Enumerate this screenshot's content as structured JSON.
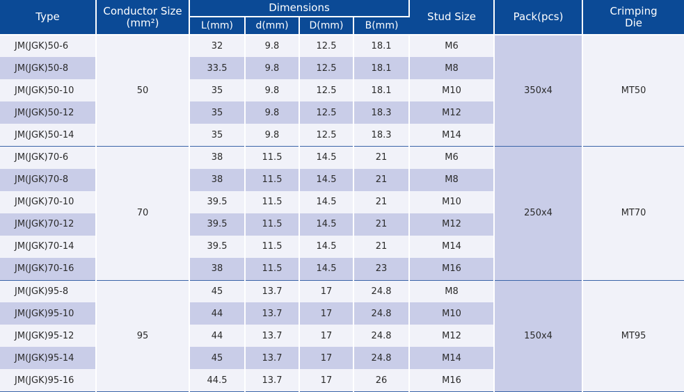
{
  "header": {
    "type": "Type",
    "conductor_size": "Conductor Size\n(mm²)",
    "dimensions": "Dimensions",
    "L": "L(mm)",
    "d": "d(mm)",
    "D": "D(mm)",
    "B": "B(mm)",
    "stud_size": "Stud Size",
    "pack": "Pack(pcs)",
    "crimping_die": "Crimping\nDie"
  },
  "groups": [
    {
      "conductor_size": "50",
      "pack": "350x4",
      "die": "MT50",
      "rows": [
        {
          "type": "JM(JGK)50-6",
          "L": "32",
          "d": "9.8",
          "D": "12.5",
          "B": "18.1",
          "stud": "M6"
        },
        {
          "type": "JM(JGK)50-8",
          "L": "33.5",
          "d": "9.8",
          "D": "12.5",
          "B": "18.1",
          "stud": "M8"
        },
        {
          "type": "JM(JGK)50-10",
          "L": "35",
          "d": "9.8",
          "D": "12.5",
          "B": "18.1",
          "stud": "M10"
        },
        {
          "type": "JM(JGK)50-12",
          "L": "35",
          "d": "9.8",
          "D": "12.5",
          "B": "18.3",
          "stud": "M12"
        },
        {
          "type": "JM(JGK)50-14",
          "L": "35",
          "d": "9.8",
          "D": "12.5",
          "B": "18.3",
          "stud": "M14"
        }
      ]
    },
    {
      "conductor_size": "70",
      "pack": "250x4",
      "die": "MT70",
      "rows": [
        {
          "type": "JM(JGK)70-6",
          "L": "38",
          "d": "11.5",
          "D": "14.5",
          "B": "21",
          "stud": "M6"
        },
        {
          "type": "JM(JGK)70-8",
          "L": "38",
          "d": "11.5",
          "D": "14.5",
          "B": "21",
          "stud": "M8"
        },
        {
          "type": "JM(JGK)70-10",
          "L": "39.5",
          "d": "11.5",
          "D": "14.5",
          "B": "21",
          "stud": "M10"
        },
        {
          "type": "JM(JGK)70-12",
          "L": "39.5",
          "d": "11.5",
          "D": "14.5",
          "B": "21",
          "stud": "M12"
        },
        {
          "type": "JM(JGK)70-14",
          "L": "39.5",
          "d": "11.5",
          "D": "14.5",
          "B": "21",
          "stud": "M14"
        },
        {
          "type": "JM(JGK)70-16",
          "L": "38",
          "d": "11.5",
          "D": "14.5",
          "B": "23",
          "stud": "M16"
        }
      ]
    },
    {
      "conductor_size": "95",
      "pack": "150x4",
      "die": "MT95",
      "rows": [
        {
          "type": "JM(JGK)95-8",
          "L": "45",
          "d": "13.7",
          "D": "17",
          "B": "24.8",
          "stud": "M8"
        },
        {
          "type": "JM(JGK)95-10",
          "L": "44",
          "d": "13.7",
          "D": "17",
          "B": "24.8",
          "stud": "M10"
        },
        {
          "type": "JM(JGK)95-12",
          "L": "44",
          "d": "13.7",
          "D": "17",
          "B": "24.8",
          "stud": "M12"
        },
        {
          "type": "JM(JGK)95-14",
          "L": "45",
          "d": "13.7",
          "D": "17",
          "B": "24.8",
          "stud": "M14"
        },
        {
          "type": "JM(JGK)95-16",
          "L": "44.5",
          "d": "13.7",
          "D": "17",
          "B": "26",
          "stud": "M16"
        }
      ]
    }
  ],
  "colors": {
    "header_bg": "#0b4a96",
    "row_light": "#f1f2f9",
    "row_dark": "#c9cde8",
    "group_divider": "#3a64a8"
  }
}
